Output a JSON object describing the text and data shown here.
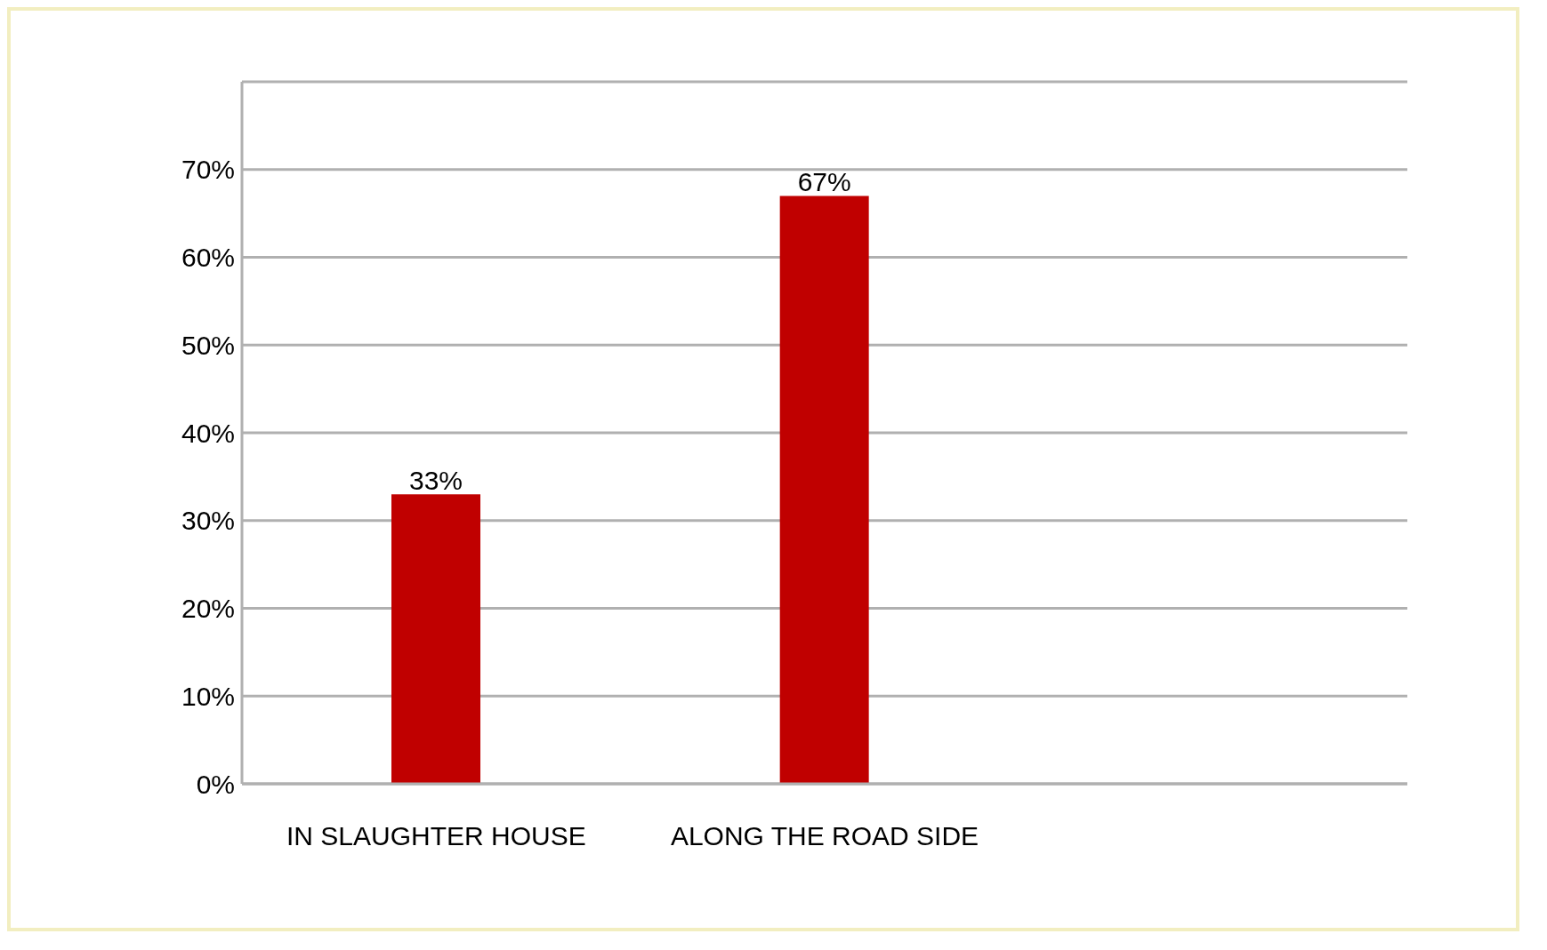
{
  "chart_data": {
    "type": "bar",
    "categories": [
      "IN SLAUGHTER  HOUSE",
      "ALONG THE  ROAD SIDE",
      null
    ],
    "values": [
      33,
      67,
      null
    ],
    "value_labels": [
      "33%",
      "67%",
      null
    ],
    "color": "#c00000",
    "ylim": [
      0,
      80
    ],
    "yticks": [
      {
        "value": 0,
        "label": "0%"
      },
      {
        "value": 10,
        "label": "10%"
      },
      {
        "value": 20,
        "label": "20%"
      },
      {
        "value": 30,
        "label": "30%"
      },
      {
        "value": 40,
        "label": "40%"
      },
      {
        "value": 50,
        "label": "50%"
      },
      {
        "value": 60,
        "label": "60%"
      },
      {
        "value": 70,
        "label": "70%"
      },
      {
        "value": 80,
        "label": null
      }
    ],
    "grid": "y",
    "legend": false
  }
}
